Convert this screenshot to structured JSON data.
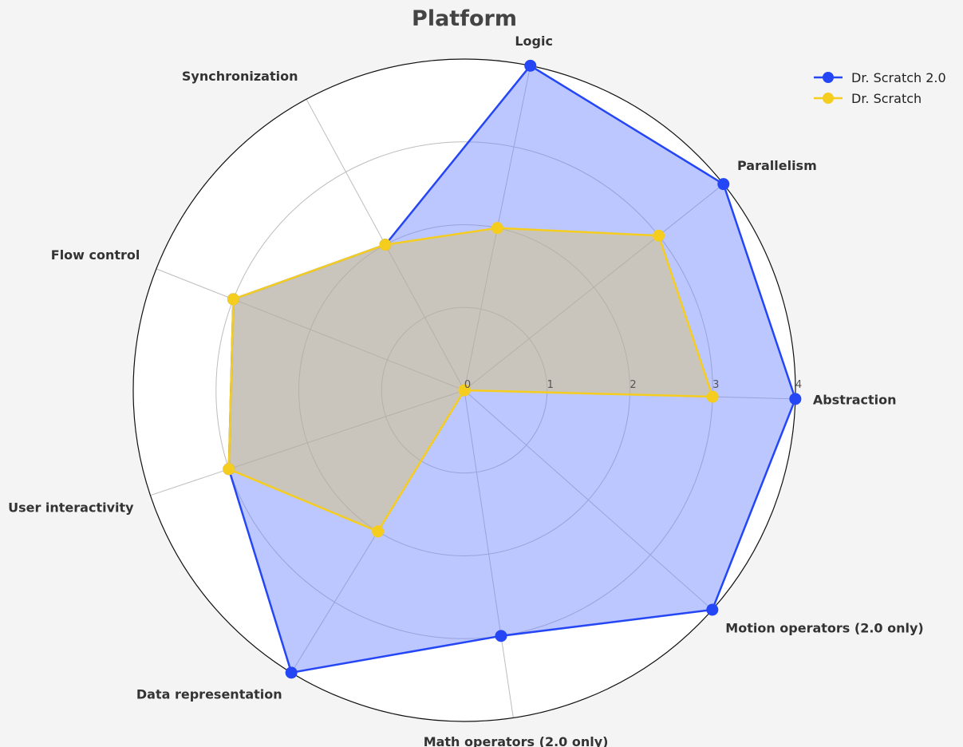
{
  "chart_data": {
    "type": "radar",
    "title": "Platform",
    "axes": [
      "Abstraction",
      "Parallelism",
      "Logic",
      "Synchronization",
      "Flow control",
      "User interactivity",
      "Data representation",
      "Math operators (2.0 only)",
      "Motion operators (2.0 only)"
    ],
    "rlim": [
      0,
      4
    ],
    "r_ticks": [
      "0",
      "1",
      "2",
      "3",
      "4"
    ],
    "grid": true,
    "legend_position": "top-right",
    "series": [
      {
        "name": "Dr. Scratch 2.0",
        "color": "#2446f5",
        "fill_color": "#6a80ff",
        "values": [
          4,
          4,
          4,
          2,
          3,
          3,
          4,
          3,
          4
        ]
      },
      {
        "name": "Dr. Scratch",
        "color": "#f5cd1f",
        "fill_color": "#dcc36a",
        "values": [
          3,
          3,
          2,
          2,
          3,
          3,
          2,
          0,
          0
        ]
      }
    ]
  }
}
